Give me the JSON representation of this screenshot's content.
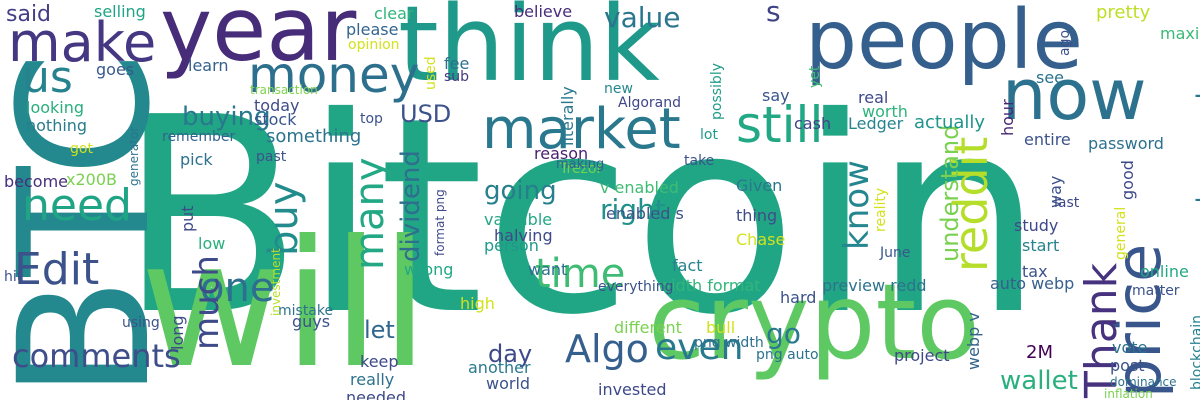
{
  "words": [
    {
      "text": "Bitcoin",
      "color": "#21a685"
    },
    {
      "text": "BTC",
      "color": "#23898e"
    },
    {
      "text": "think",
      "color": "#1f9a8a"
    },
    {
      "text": "year",
      "color": "#472c7a"
    },
    {
      "text": "people",
      "color": "#355f8d"
    },
    {
      "text": "will",
      "color": "#5ec962"
    },
    {
      "text": "crypto",
      "color": "#5ec962"
    },
    {
      "text": "now",
      "color": "#2c728e"
    },
    {
      "text": "make",
      "color": "#453781"
    },
    {
      "text": "money",
      "color": "#2d708e"
    },
    {
      "text": "price",
      "color": "#39568c"
    },
    {
      "text": "market",
      "color": "#2a788e"
    },
    {
      "text": "still",
      "color": "#22a884"
    },
    {
      "text": "need",
      "color": "#20a486"
    },
    {
      "text": "us",
      "color": "#26828e"
    },
    {
      "text": "Edit",
      "color": "#3b528b"
    },
    {
      "text": "one",
      "color": "#2e6e8e"
    },
    {
      "text": "reddit",
      "color": "#b5de2b"
    },
    {
      "text": "Thank",
      "color": "#46327e"
    },
    {
      "text": "buy",
      "color": "#228c8d"
    },
    {
      "text": "many",
      "color": "#22a884"
    },
    {
      "text": "time",
      "color": "#3fbc73"
    },
    {
      "text": "Algo",
      "color": "#355f8d"
    },
    {
      "text": "even",
      "color": "#29798e"
    },
    {
      "text": "much",
      "color": "#3e4a89"
    },
    {
      "text": "comments",
      "color": "#3d4e8a"
    },
    {
      "text": "know",
      "color": "#24868e"
    },
    {
      "text": "going",
      "color": "#277f8e"
    },
    {
      "text": "right",
      "color": "#21918c"
    },
    {
      "text": "buying",
      "color": "#29798e"
    },
    {
      "text": "value",
      "color": "#2a768e"
    },
    {
      "text": "dividend",
      "color": "#2e6e8e"
    },
    {
      "text": "understand",
      "color": "#7ad151"
    },
    {
      "text": "made enough",
      "color": "#2a778e"
    },
    {
      "text": "wallet",
      "color": "#2ab07f"
    },
    {
      "text": "USD",
      "color": "#3b528b"
    },
    {
      "text": "s",
      "color": "#404387"
    },
    {
      "text": "go",
      "color": "#2a788e"
    },
    {
      "text": "day",
      "color": "#3e4989"
    },
    {
      "text": "let",
      "color": "#31678e"
    },
    {
      "text": "said",
      "color": "#433e85"
    },
    {
      "text": "selling",
      "color": "#20a486"
    },
    {
      "text": "clear",
      "color": "#2fb47c"
    },
    {
      "text": "believe",
      "color": "#472d7b"
    },
    {
      "text": "cash",
      "color": "#414487"
    },
    {
      "text": "Ledger",
      "color": "#25848e"
    },
    {
      "text": "actually",
      "color": "#1f958b"
    },
    {
      "text": "pretty",
      "color": "#bddf26"
    },
    {
      "text": "maxi",
      "color": "#3aba76"
    },
    {
      "text": "please",
      "color": "#32658e"
    },
    {
      "text": "fee",
      "color": "#2e6f8e"
    },
    {
      "text": "sub",
      "color": "#453882"
    },
    {
      "text": "used",
      "color": "#d2e21b"
    },
    {
      "text": "learn",
      "color": "#34618d"
    },
    {
      "text": "goes",
      "color": "#38598c"
    },
    {
      "text": "looking",
      "color": "#29af7f"
    },
    {
      "text": "nothing",
      "color": "#287c8e"
    },
    {
      "text": "today",
      "color": "#3e4c8a"
    },
    {
      "text": "stock",
      "color": "#39568c"
    },
    {
      "text": "something",
      "color": "#2c738e"
    },
    {
      "text": "transaction",
      "color": "#7fd34e"
    },
    {
      "text": "remember",
      "color": "#33638d"
    },
    {
      "text": "pick",
      "color": "#2d718e"
    },
    {
      "text": "become",
      "color": "#472f7d"
    },
    {
      "text": "x200B",
      "color": "#7ad151"
    },
    {
      "text": "Algorand",
      "color": "#404688"
    },
    {
      "text": "Trezor",
      "color": "#73d056"
    },
    {
      "text": "reason",
      "color": "#481f70"
    },
    {
      "text": "making",
      "color": "#34618d"
    },
    {
      "text": "literally",
      "color": "#2a788e"
    },
    {
      "text": "possibly",
      "color": "#1f9e89"
    },
    {
      "text": "real",
      "color": "#3e4989"
    },
    {
      "text": "worth",
      "color": "#2fb47c"
    },
    {
      "text": "say",
      "color": "#39568c"
    },
    {
      "text": "yet",
      "color": "#3fbc73"
    },
    {
      "text": "lot",
      "color": "#1f998a"
    },
    {
      "text": "new",
      "color": "#24868e"
    },
    {
      "text": "v enabled",
      "color": "#3fbc73"
    },
    {
      "text": "Given",
      "color": "#2a768e"
    },
    {
      "text": "thing",
      "color": "#3e4c8a"
    },
    {
      "text": "Chase",
      "color": "#d2e21b"
    },
    {
      "text": "valuable",
      "color": "#22a785"
    },
    {
      "text": "halving",
      "color": "#3e4989"
    },
    {
      "text": "person",
      "color": "#1f998a"
    },
    {
      "text": "enabled s",
      "color": "#3b528b"
    },
    {
      "text": "want",
      "color": "#2d708e"
    },
    {
      "text": "wrong",
      "color": "#22a884"
    },
    {
      "text": "fact",
      "color": "#26828e"
    },
    {
      "text": "width format",
      "color": "#31b57b"
    },
    {
      "text": "preview redd",
      "color": "#2c728e"
    },
    {
      "text": "auto webp",
      "color": "#355f8d"
    },
    {
      "text": "June",
      "color": "#39568c"
    },
    {
      "text": "study",
      "color": "#3e4989"
    },
    {
      "text": "start",
      "color": "#26828e"
    },
    {
      "text": "way",
      "color": "#3b528b"
    },
    {
      "text": "last",
      "color": "#3e4989"
    },
    {
      "text": "hour",
      "color": "#482576"
    },
    {
      "text": "entire",
      "color": "#3b528b"
    },
    {
      "text": "password",
      "color": "#2c728e"
    },
    {
      "text": "see",
      "color": "#2c738e"
    },
    {
      "text": "ago",
      "color": "#3b528b"
    },
    {
      "text": "good",
      "color": "#3e4989"
    },
    {
      "text": "tax",
      "color": "#3b528b"
    },
    {
      "text": "online",
      "color": "#22a884"
    },
    {
      "text": "general",
      "color": "#d2e21b"
    },
    {
      "text": "matter",
      "color": "#3b528b"
    },
    {
      "text": "blockchain",
      "color": "#26828e"
    },
    {
      "text": "vote",
      "color": "#2c738e"
    },
    {
      "text": "2M",
      "color": "#440154"
    },
    {
      "text": "post",
      "color": "#3b528b"
    },
    {
      "text": "dominance",
      "color": "#2c728e"
    },
    {
      "text": "inflation",
      "color": "#7ad151"
    },
    {
      "text": "webp v",
      "color": "#33638d"
    },
    {
      "text": "project",
      "color": "#3e4989"
    },
    {
      "text": "bull",
      "color": "#d2e21b"
    },
    {
      "text": "hard",
      "color": "#3b528b"
    },
    {
      "text": "png width",
      "color": "#2c728e"
    },
    {
      "text": "png auto",
      "color": "#2c728e"
    },
    {
      "text": "different",
      "color": "#7ad151"
    },
    {
      "text": "another",
      "color": "#2a788e"
    },
    {
      "text": "world",
      "color": "#3b528b"
    },
    {
      "text": "invested",
      "color": "#3e4989"
    },
    {
      "text": "high",
      "color": "#d2e21b"
    },
    {
      "text": "everything",
      "color": "#3b528b"
    },
    {
      "text": "keep",
      "color": "#3e4989"
    },
    {
      "text": "really",
      "color": "#2c728e"
    },
    {
      "text": "needed",
      "color": "#3e4989"
    },
    {
      "text": "guys",
      "color": "#3b528b"
    },
    {
      "text": "mistake",
      "color": "#2c728e"
    },
    {
      "text": "long",
      "color": "#3e4989"
    },
    {
      "text": "using",
      "color": "#3b528b"
    },
    {
      "text": "hit",
      "color": "#3b528b"
    },
    {
      "text": "put",
      "color": "#3e4989"
    },
    {
      "text": "low",
      "color": "#2ab07f"
    },
    {
      "text": "investment",
      "color": "#b5de2b"
    },
    {
      "text": "generator",
      "color": "#2c728e"
    },
    {
      "text": "past",
      "color": "#3b528b"
    },
    {
      "text": "got",
      "color": "#d2e21b"
    },
    {
      "text": "opinion",
      "color": "#d2e21b"
    },
    {
      "text": "top",
      "color": "#3b528b"
    },
    {
      "text": "format png",
      "color": "#3e4989"
    },
    {
      "text": "take",
      "color": "#3b528b"
    },
    {
      "text": "reality",
      "color": "#d2e21b"
    }
  ]
}
